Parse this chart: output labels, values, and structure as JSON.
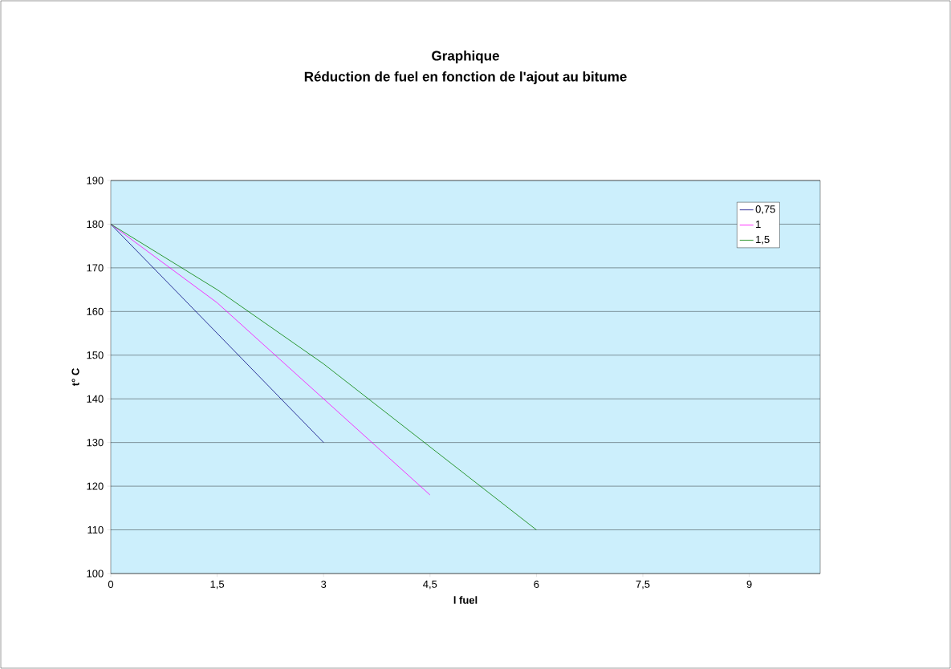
{
  "chart_data": {
    "type": "line",
    "title": "Graphique",
    "subtitle": "Réduction de fuel en fonction de l'ajout au bitume",
    "xlabel": "l fuel",
    "ylabel": "t° C",
    "series": [
      {
        "name": "0,75",
        "color": "#000080",
        "x": [
          0,
          3
        ],
        "values": [
          180,
          130
        ]
      },
      {
        "name": "1",
        "color": "#ff00ff",
        "x": [
          0,
          1.5,
          4.5
        ],
        "values": [
          180,
          162,
          118
        ]
      },
      {
        "name": "1,5",
        "color": "#008000",
        "x": [
          0,
          1.5,
          3,
          6
        ],
        "values": [
          180,
          165,
          148,
          110
        ]
      }
    ],
    "xlim": [
      0,
      10
    ],
    "xticks": [
      0,
      {
        "value": 1.5,
        "label": "1,5"
      },
      3,
      {
        "value": 4.5,
        "label": "4,5"
      },
      6,
      {
        "value": 7.5,
        "label": "7,5"
      },
      9
    ],
    "ylim": [
      100,
      190
    ],
    "yticks": [
      100,
      110,
      120,
      130,
      140,
      150,
      160,
      170,
      180,
      190
    ],
    "grid": "y",
    "legend": "top right"
  }
}
